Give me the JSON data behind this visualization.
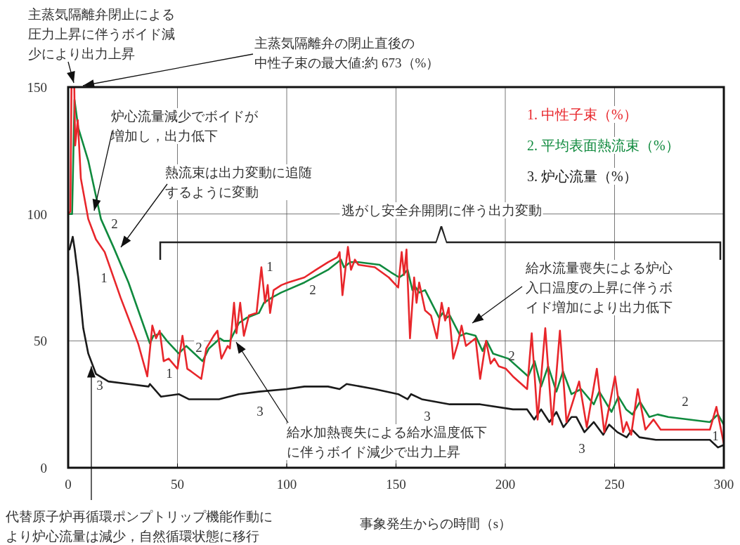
{
  "chart_data": {
    "type": "line",
    "xlabel": "事象発生からの時間（s）",
    "xlim": [
      0,
      300
    ],
    "xticks": [
      0,
      50,
      100,
      150,
      200,
      250,
      300
    ],
    "ylim": [
      0,
      150
    ],
    "yticks": [
      0,
      50,
      100,
      150
    ],
    "grid": true,
    "legend": "top right",
    "line_style": "solid",
    "marker": "none",
    "series": [
      {
        "name": "1. 中性子束（%）",
        "color": "#e8262b",
        "x": [
          0,
          1,
          1.5,
          2.8,
          3.2,
          4.4,
          5.8,
          9.2,
          12.7,
          16.7,
          24,
          32,
          36.2,
          38.5,
          40.2,
          41.9,
          43.7,
          46,
          50,
          52.3,
          54.5,
          56.2,
          60.9,
          63.2,
          66.6,
          68.3,
          70.1,
          73,
          74,
          75.9,
          77,
          78.7,
          80.4,
          82.7,
          86.2,
          88.4,
          90.1,
          91.3,
          92.4,
          94,
          97.6,
          100.6,
          108.1,
          113.4,
          118.9,
          123.2,
          124.2,
          125.5,
          128,
          129.4,
          131.2,
          132.8,
          140.3,
          146.7,
          151,
          152.6,
          153.7,
          154.8,
          156.4,
          158.3,
          159.4,
          160.6,
          163.3,
          166,
          168.7,
          170.9,
          172.5,
          174.1,
          176.2,
          178.3,
          180,
          182,
          186.4,
          188.5,
          191.2,
          193.3,
          195,
          197,
          200.3,
          203.5,
          210,
          212.1,
          214.8,
          218.3,
          221.5,
          225,
          228,
          230.9,
          233.8,
          237.3,
          241.9,
          245.3,
          250.2,
          253.9,
          255.5,
          257.6,
          260.6,
          264.1,
          267.8,
          271.1,
          279.6,
          293.6,
          296.6,
          300
        ],
        "values": [
          100,
          101,
          150,
          150,
          127,
          137,
          114,
          98,
          90,
          85,
          67,
          49,
          36,
          56,
          51,
          54,
          42,
          43,
          39,
          52,
          39,
          38,
          35,
          47,
          52,
          54,
          43,
          48,
          47,
          65,
          53,
          65,
          52,
          60,
          61,
          79,
          65,
          72,
          61,
          70,
          72,
          73,
          75,
          78,
          81,
          83,
          85,
          68,
          87,
          78,
          82,
          80,
          79,
          75,
          71,
          85,
          76,
          86,
          51,
          75,
          65,
          73,
          62,
          60,
          51,
          65,
          58,
          63,
          43,
          49,
          56,
          48,
          51,
          35,
          50,
          41,
          43,
          40,
          39,
          36,
          31,
          53,
          19,
          55,
          17,
          54,
          18,
          26,
          34,
          16,
          39,
          14,
          36,
          14,
          18,
          13,
          31,
          15,
          19,
          15,
          15,
          15,
          24,
          9.5
        ]
      },
      {
        "name": "2. 平均表面熱流束（%）",
        "color": "#108a3e",
        "x": [
          0,
          1.8,
          2.9,
          4.6,
          9.2,
          15,
          20.7,
          27.6,
          37.4,
          39,
          42.5,
          45.2,
          50.6,
          54,
          61.5,
          64.4,
          69.5,
          71.2,
          74,
          78.1,
          81.5,
          87.3,
          89.6,
          93.1,
          97.4,
          108.1,
          118.9,
          124.8,
          126.2,
          129.1,
          132.8,
          142.4,
          147.7,
          151.5,
          153.2,
          155.3,
          157.5,
          159.1,
          160.6,
          163.3,
          169.8,
          171.4,
          173,
          174.6,
          179.4,
          182.1,
          186.4,
          189.6,
          191.5,
          194.4,
          201.4,
          210.5,
          213.4,
          216.4,
          219.6,
          223.4,
          226.4,
          230.3,
          234.7,
          240.5,
          243,
          248.6,
          251.8,
          255.3,
          258.2,
          261.6,
          265.9,
          269.7,
          274.6,
          293.6,
          297.3,
          300
        ],
        "values": [
          100,
          100,
          145,
          134,
          121,
          98,
          87,
          73,
          49,
          52,
          53,
          50,
          45,
          48,
          42,
          47,
          51,
          50,
          50,
          57,
          59,
          61,
          65,
          67,
          69,
          73,
          78,
          82,
          79,
          81,
          81,
          80,
          77,
          75,
          76,
          78,
          70,
          71,
          69,
          70,
          59,
          61,
          59,
          60,
          52,
          53,
          52,
          46,
          50,
          45,
          43,
          36,
          42,
          32,
          40,
          30,
          38,
          29,
          31,
          25,
          30,
          22,
          28,
          23,
          21,
          26,
          20,
          21,
          20,
          18,
          21,
          17
        ]
      },
      {
        "name": "3. 炉心流量（%）",
        "color": "#1a1a1a",
        "x": [
          0.6,
          2.1,
          3,
          4.6,
          6.9,
          9.2,
          12.7,
          18.4,
          27.6,
          36.8,
          37.4,
          42.5,
          50.6,
          55.2,
          69,
          78.1,
          87.3,
          100,
          108.1,
          118.9,
          124.2,
          127.4,
          140.3,
          151,
          155.3,
          156.9,
          161.8,
          174.6,
          188.5,
          203.5,
          210,
          213.2,
          216.4,
          220.2,
          223.4,
          226.6,
          230.3,
          232.5,
          236.2,
          240.5,
          244.8,
          247.5,
          251.3,
          255.5,
          258,
          261.4,
          268.9,
          293.6,
          297.3,
          300
        ],
        "values": [
          86,
          91,
          86,
          75,
          55,
          45,
          37,
          34,
          33,
          32,
          33,
          28,
          29,
          27,
          27,
          29,
          30,
          31,
          32,
          32,
          31,
          33,
          31,
          29,
          27,
          29,
          27,
          25,
          25,
          23,
          23,
          19,
          23,
          18,
          22,
          16,
          20,
          20,
          14,
          18,
          13,
          17,
          14,
          12,
          15,
          12,
          11,
          11,
          8,
          9
        ]
      }
    ],
    "annotations": [
      "主蒸気隔離弁閉止による圧力上昇に伴うボイド減少により出力上昇",
      "主蒸気隔離弁の閉止直後の中性子束の最大値:約 673（%）",
      "炉心流量減少でボイドが増加し，出力低下",
      "熱流束は出力変動に追随するように変動",
      "逃がし安全弁開閉に伴う出力変動",
      "給水流量喪失による炉心入口温度の上昇に伴うボイド増加により出力低下",
      "給水加熱喪失による給水温度低下に伴うボイド減少で出力上昇",
      {
        "text": "代替原子炉再循環ポンプトリップ機能作動により炉心流量は減少，自然循環状態に移行",
        "x": 10.6,
        "y": 40
      },
      "2",
      "1",
      "3",
      "1",
      "2",
      "3",
      "1",
      "2",
      "3",
      "2",
      "2",
      "1",
      "3"
    ]
  }
}
